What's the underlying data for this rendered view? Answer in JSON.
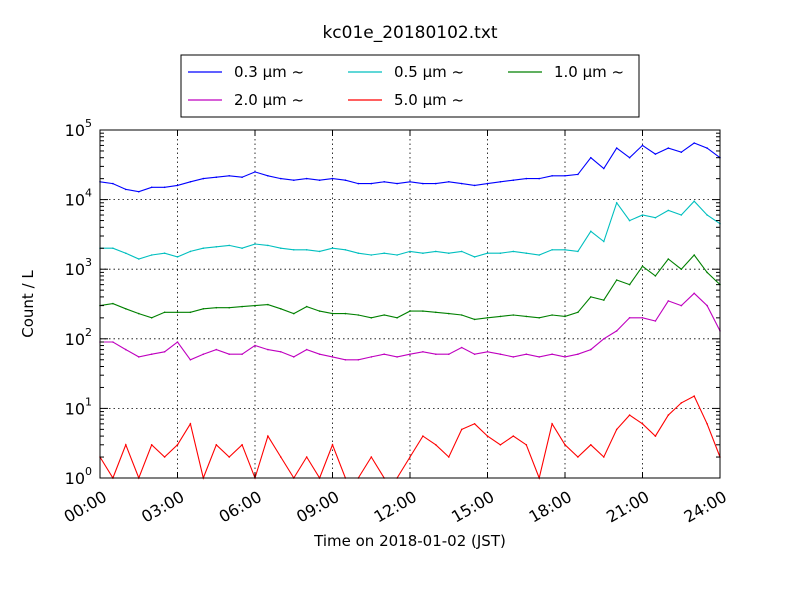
{
  "chart_data": {
    "type": "line",
    "title": "kc01e_20180102.txt",
    "xlabel": "Time on 2018-01-02 (JST)",
    "ylabel": "Count / L",
    "yscale": "log",
    "ylim": [
      1,
      100000
    ],
    "xlim": [
      "00:00",
      "24:00"
    ],
    "grid": true,
    "legend_position": "top-center",
    "x_ticks": [
      "00:00",
      "03:00",
      "06:00",
      "09:00",
      "12:00",
      "15:00",
      "18:00",
      "21:00",
      "24:00"
    ],
    "y_ticks": [
      {
        "base": "10",
        "exp": "0"
      },
      {
        "base": "10",
        "exp": "1"
      },
      {
        "base": "10",
        "exp": "2"
      },
      {
        "base": "10",
        "exp": "3"
      },
      {
        "base": "10",
        "exp": "4"
      },
      {
        "base": "10",
        "exp": "5"
      }
    ],
    "x": [
      "00:00",
      "00:30",
      "01:00",
      "01:30",
      "02:00",
      "02:30",
      "03:00",
      "03:30",
      "04:00",
      "04:30",
      "05:00",
      "05:30",
      "06:00",
      "06:30",
      "07:00",
      "07:30",
      "08:00",
      "08:30",
      "09:00",
      "09:30",
      "10:00",
      "10:30",
      "11:00",
      "11:30",
      "12:00",
      "12:30",
      "13:00",
      "13:30",
      "14:00",
      "14:30",
      "15:00",
      "15:30",
      "16:00",
      "16:30",
      "17:00",
      "17:30",
      "18:00",
      "18:30",
      "19:00",
      "19:30",
      "20:00",
      "20:30",
      "21:00",
      "21:30",
      "22:00",
      "22:30",
      "23:00",
      "23:30",
      "24:00"
    ],
    "series": [
      {
        "name": "0.3 μm ~",
        "color": "#0000ff",
        "values": [
          18000,
          17000,
          14000,
          13000,
          15000,
          15000,
          16000,
          18000,
          20000,
          21000,
          22000,
          21000,
          25000,
          22000,
          20000,
          19000,
          20000,
          19000,
          20000,
          19000,
          17000,
          17000,
          18000,
          17000,
          18000,
          17000,
          17000,
          18000,
          17000,
          16000,
          17000,
          18000,
          19000,
          20000,
          20000,
          22000,
          22000,
          23000,
          40000,
          28000,
          55000,
          40000,
          60000,
          45000,
          55000,
          48000,
          65000,
          55000,
          40000
        ]
      },
      {
        "name": "0.5 μm ~",
        "color": "#00bfbf",
        "values": [
          2000,
          2000,
          1700,
          1400,
          1600,
          1700,
          1500,
          1800,
          2000,
          2100,
          2200,
          2000,
          2300,
          2200,
          2000,
          1900,
          1900,
          1800,
          2000,
          1900,
          1700,
          1600,
          1700,
          1600,
          1800,
          1700,
          1800,
          1700,
          1800,
          1500,
          1700,
          1700,
          1800,
          1700,
          1600,
          1900,
          1900,
          1800,
          3500,
          2500,
          9000,
          5000,
          6000,
          5500,
          7000,
          6000,
          9500,
          6000,
          4500
        ]
      },
      {
        "name": "1.0 μm ~",
        "color": "#008000",
        "values": [
          300,
          320,
          270,
          230,
          200,
          240,
          240,
          240,
          270,
          280,
          280,
          290,
          300,
          310,
          270,
          230,
          290,
          250,
          230,
          230,
          220,
          200,
          220,
          200,
          250,
          250,
          240,
          230,
          220,
          190,
          200,
          210,
          220,
          210,
          200,
          220,
          210,
          240,
          400,
          360,
          700,
          600,
          1100,
          800,
          1400,
          1000,
          1600,
          900,
          600
        ]
      },
      {
        "name": "2.0 μm ~",
        "color": "#bf00bf",
        "values": [
          90,
          90,
          70,
          55,
          60,
          65,
          90,
          50,
          60,
          70,
          60,
          60,
          80,
          70,
          65,
          55,
          70,
          60,
          55,
          50,
          50,
          55,
          60,
          55,
          60,
          65,
          60,
          60,
          75,
          60,
          65,
          60,
          55,
          60,
          55,
          60,
          55,
          60,
          70,
          100,
          130,
          200,
          200,
          180,
          350,
          300,
          450,
          300,
          130
        ]
      },
      {
        "name": "5.0 μm ~",
        "color": "#ff0000",
        "values": [
          2,
          1,
          3,
          1,
          3,
          2,
          3,
          6,
          1,
          3,
          2,
          3,
          1,
          4,
          2,
          1,
          2,
          1,
          3,
          1,
          1,
          2,
          1,
          1,
          2,
          4,
          3,
          2,
          5,
          6,
          4,
          3,
          4,
          3,
          1,
          6,
          3,
          2,
          3,
          2,
          5,
          8,
          6,
          4,
          8,
          12,
          15,
          6,
          2
        ]
      }
    ]
  }
}
